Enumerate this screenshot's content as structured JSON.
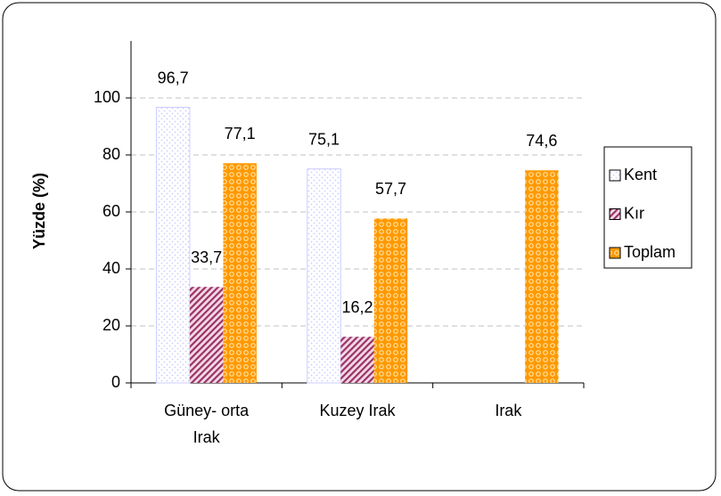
{
  "chart_data": {
    "type": "bar",
    "y_label": "Yüzde (%)",
    "categories": [
      "Güney- orta Irak",
      "Kuzey Irak",
      "Irak"
    ],
    "series": [
      {
        "name": "Kent",
        "color": "#ccccff",
        "values": [
          96.7,
          75.1,
          null
        ],
        "value_labels": [
          "96,7",
          "75,1",
          null
        ]
      },
      {
        "name": "Kır",
        "color": "#993366",
        "values": [
          33.7,
          16.2,
          null
        ],
        "value_labels": [
          "33,7",
          "16,2",
          null
        ]
      },
      {
        "name": "Toplam",
        "color": "#ff9900",
        "values": [
          77.1,
          57.7,
          74.6
        ],
        "value_labels": [
          "77,1",
          "57,7",
          "74,6"
        ]
      }
    ],
    "ylim": [
      0,
      120
    ],
    "yticks": [
      0,
      20,
      40,
      60,
      80,
      100
    ],
    "grid": true,
    "legend": "right"
  }
}
